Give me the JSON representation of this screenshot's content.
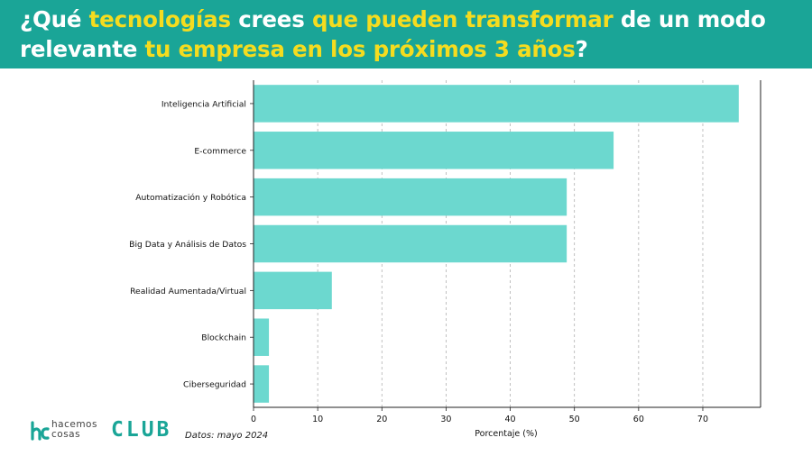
{
  "header": {
    "title_parts": [
      {
        "text": "¿Qué ",
        "highlight": false
      },
      {
        "text": "tecnologías",
        "highlight": true
      },
      {
        "text": " crees ",
        "highlight": false
      },
      {
        "text": "que pueden transformar",
        "highlight": true
      },
      {
        "text": " de un modo relevante ",
        "highlight": false
      },
      {
        "text": "tu empresa en los próximos 3 años",
        "highlight": true
      },
      {
        "text": "?",
        "highlight": false
      }
    ],
    "background_color": "#1aa597",
    "highlight_color": "#f5dc1f",
    "text_color": "#ffffff"
  },
  "chart_data": {
    "type": "bar",
    "orientation": "horizontal",
    "categories": [
      "Inteligencia Artificial",
      "E-commerce",
      "Automatización y Robótica",
      "Big Data y Análisis de Datos",
      "Realidad Aumentada/Virtual",
      "Blockchain",
      "Ciberseguridad"
    ],
    "values": [
      75.6,
      56.1,
      48.8,
      48.8,
      12.2,
      2.4,
      2.4
    ],
    "xlabel": "Porcentaje (%)",
    "ylabel": "",
    "xlim": [
      0,
      79
    ],
    "xticks": [
      0,
      10,
      20,
      30,
      40,
      50,
      60,
      70
    ],
    "grid": "vertical-dashed",
    "bar_color": "#6cd8cf",
    "legend": "none"
  },
  "footer": {
    "brand_line1": "hacemos",
    "brand_line2": "cosas",
    "brand_club": "CLUB",
    "source_note": "Datos: mayo 2024",
    "brand_color": "#1aa597"
  }
}
